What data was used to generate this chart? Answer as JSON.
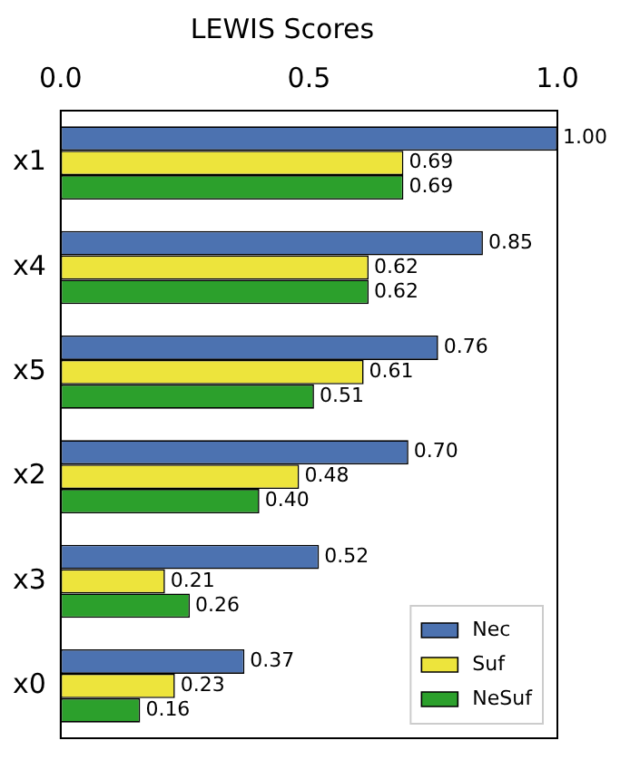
{
  "chart_data": {
    "type": "bar",
    "orientation": "horizontal",
    "title": "LEWIS Scores",
    "categories": [
      "x1",
      "x4",
      "x5",
      "x2",
      "x3",
      "x0"
    ],
    "xlim": [
      0,
      1
    ],
    "xticks": [
      {
        "value": 0,
        "label": "0.0"
      },
      {
        "value": 0.5,
        "label": "0.5"
      },
      {
        "value": 1,
        "label": "1.0"
      }
    ],
    "grid": false,
    "legend": "bottom right",
    "series": [
      {
        "name": "Nec",
        "color": "#4c72b0",
        "values": [
          1.0,
          0.85,
          0.76,
          0.7,
          0.52,
          0.37
        ],
        "value_labels": [
          "1.00",
          "0.85",
          "0.76",
          "0.70",
          "0.52",
          "0.37"
        ]
      },
      {
        "name": "Suf",
        "color": "#ede43c",
        "values": [
          0.69,
          0.62,
          0.61,
          0.48,
          0.21,
          0.23
        ],
        "value_labels": [
          "0.69",
          "0.62",
          "0.61",
          "0.48",
          "0.21",
          "0.23"
        ]
      },
      {
        "name": "NeSuf",
        "color": "#2ca02c",
        "values": [
          0.69,
          0.62,
          0.51,
          0.4,
          0.26,
          0.16
        ],
        "value_labels": [
          "0.69",
          "0.62",
          "0.51",
          "0.40",
          "0.26",
          "0.16"
        ]
      }
    ]
  }
}
